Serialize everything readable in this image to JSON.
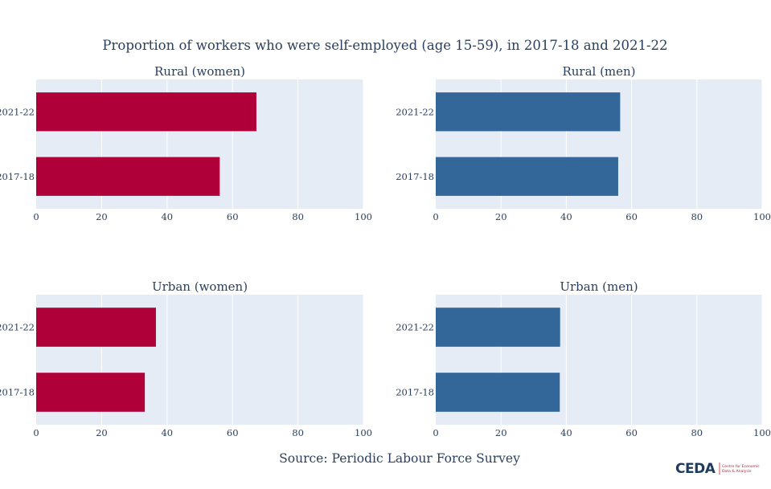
{
  "title": "Proportion of workers who were self-employed (age 15-59), in 2017-18 and 2021-22",
  "source": "Source: Periodic Labour Force Survey",
  "logo": {
    "word": "CEDA",
    "line1": "Centre for Economic",
    "line2": "Data & Analysis"
  },
  "colors": {
    "women": "#b0003a",
    "men": "#336699",
    "plot_bg": "#e5ecf6",
    "grid": "#ffffff",
    "text": "#2a3f5f"
  },
  "chart_data": [
    {
      "type": "bar",
      "orientation": "horizontal",
      "title": "Rural (women)",
      "series_color": "women",
      "categories": [
        "2021-22",
        "2017-18"
      ],
      "values": [
        67.3,
        56.1
      ],
      "xlim": [
        0,
        100
      ],
      "xticks": [
        "0",
        "20",
        "40",
        "60",
        "80",
        "100"
      ]
    },
    {
      "type": "bar",
      "orientation": "horizontal",
      "title": "Rural (men)",
      "series_color": "men",
      "categories": [
        "2021-22",
        "2017-18"
      ],
      "values": [
        56.5,
        55.9
      ],
      "xlim": [
        0,
        100
      ],
      "xticks": [
        "0",
        "20",
        "40",
        "60",
        "80",
        "100"
      ]
    },
    {
      "type": "bar",
      "orientation": "horizontal",
      "title": "Urban (women)",
      "series_color": "women",
      "categories": [
        "2021-22",
        "2017-18"
      ],
      "values": [
        36.6,
        33.2
      ],
      "xlim": [
        0,
        100
      ],
      "xticks": [
        "0",
        "20",
        "40",
        "60",
        "80",
        "100"
      ]
    },
    {
      "type": "bar",
      "orientation": "horizontal",
      "title": "Urban (men)",
      "series_color": "men",
      "categories": [
        "2021-22",
        "2017-18"
      ],
      "values": [
        38.1,
        38.0
      ],
      "xlim": [
        0,
        100
      ],
      "xticks": [
        "0",
        "20",
        "40",
        "60",
        "80",
        "100"
      ]
    }
  ]
}
